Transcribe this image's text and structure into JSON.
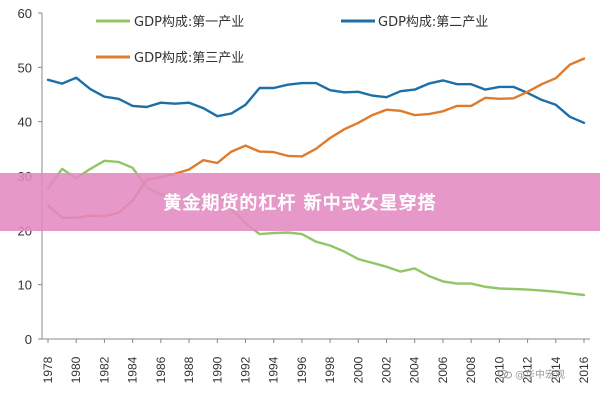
{
  "chart_data": {
    "type": "line",
    "title": "",
    "xlabel": "",
    "ylabel": "",
    "ylim": [
      0,
      60
    ],
    "y_ticks": [
      "0",
      "10",
      "20",
      "30",
      "40",
      "50",
      "60"
    ],
    "x_ticks": [
      "1978",
      "1980",
      "1982",
      "1984",
      "1986",
      "1988",
      "1990",
      "1992",
      "1994",
      "1996",
      "1998",
      "2000",
      "2002",
      "2004",
      "2006",
      "2008",
      "2010",
      "2012",
      "2014",
      "2016"
    ],
    "x": [
      1978,
      1979,
      1980,
      1981,
      1982,
      1983,
      1984,
      1985,
      1986,
      1987,
      1988,
      1989,
      1990,
      1991,
      1992,
      1993,
      1994,
      1995,
      1996,
      1997,
      1998,
      1999,
      2000,
      2001,
      2002,
      2003,
      2004,
      2005,
      2006,
      2007,
      2008,
      2009,
      2010,
      2011,
      2012,
      2013,
      2014,
      2015,
      2016
    ],
    "series": [
      {
        "name": "GDP构成:第一产业",
        "color": "#92c566",
        "values": [
          27.7,
          31.3,
          29.6,
          31.3,
          32.8,
          32.6,
          31.5,
          27.9,
          26.6,
          26.3,
          25.2,
          24.6,
          26.6,
          24.0,
          21.3,
          19.3,
          19.5,
          19.6,
          19.3,
          17.9,
          17.2,
          16.1,
          14.7,
          14.0,
          13.3,
          12.4,
          13.0,
          11.6,
          10.6,
          10.2,
          10.2,
          9.6,
          9.3,
          9.2,
          9.1,
          8.9,
          8.7,
          8.4,
          8.1
        ]
      },
      {
        "name": "GDP构成:第二产业",
        "color": "#1d6fa8",
        "values": [
          47.7,
          47.0,
          48.1,
          46.0,
          44.6,
          44.2,
          42.9,
          42.7,
          43.5,
          43.3,
          43.5,
          42.5,
          41.0,
          41.5,
          43.1,
          46.2,
          46.2,
          46.8,
          47.1,
          47.1,
          45.8,
          45.4,
          45.5,
          44.8,
          44.5,
          45.6,
          45.9,
          47.0,
          47.6,
          46.9,
          46.9,
          45.9,
          46.4,
          46.4,
          45.3,
          44.0,
          43.1,
          40.9,
          39.8
        ]
      },
      {
        "name": "GDP构成:第三产业",
        "color": "#e07b2c",
        "values": [
          24.6,
          22.3,
          22.3,
          22.7,
          22.6,
          23.2,
          25.5,
          29.3,
          29.8,
          30.4,
          31.2,
          32.9,
          32.4,
          34.5,
          35.6,
          34.5,
          34.4,
          33.7,
          33.6,
          35.0,
          37.0,
          38.6,
          39.8,
          41.2,
          42.2,
          42.0,
          41.2,
          41.4,
          41.9,
          42.9,
          42.9,
          44.4,
          44.2,
          44.3,
          45.5,
          46.9,
          48.0,
          50.5,
          51.6
        ]
      }
    ]
  },
  "banner": {
    "text": "黄金期货的杠杆 新中式女星穿搭"
  },
  "watermark": {
    "text": "@华中宏观"
  }
}
